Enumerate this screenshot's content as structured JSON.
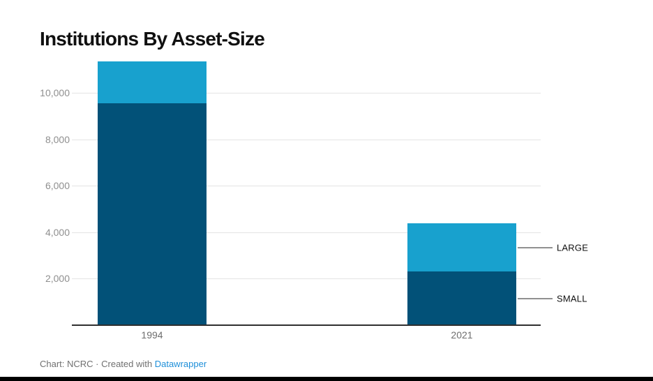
{
  "title": "Institutions By Asset-Size",
  "footer": {
    "text": "Chart: NCRC · Created with ",
    "link_label": "Datawrapper"
  },
  "chart_data": {
    "type": "bar",
    "stacked": true,
    "title": "Institutions By Asset-Size",
    "categories": [
      "1994",
      "2021"
    ],
    "series": [
      {
        "name": "SMALL",
        "color": "#025178",
        "values": [
          9550,
          2300
        ]
      },
      {
        "name": "LARGE",
        "color": "#18a1ce",
        "values": [
          1800,
          2100
        ]
      }
    ],
    "yticks": [
      {
        "value": 2000,
        "label": "2,000"
      },
      {
        "value": 4000,
        "label": "4,000"
      },
      {
        "value": 6000,
        "label": "6,000"
      },
      {
        "value": 8000,
        "label": "8,000"
      },
      {
        "value": 10000,
        "label": "10,000"
      }
    ],
    "ylim": [
      0,
      11600
    ],
    "grid": true,
    "xlabel": "",
    "ylabel": "",
    "legend_position": "right-annotations",
    "annotations": [
      "LARGE",
      "SMALL"
    ]
  },
  "colors": {
    "small_bar": "#025178",
    "large_bar": "#18a1ce",
    "gridline": "#e4e4e4",
    "axis_line": "#2f2f2f",
    "link": "#1e8fd9"
  }
}
